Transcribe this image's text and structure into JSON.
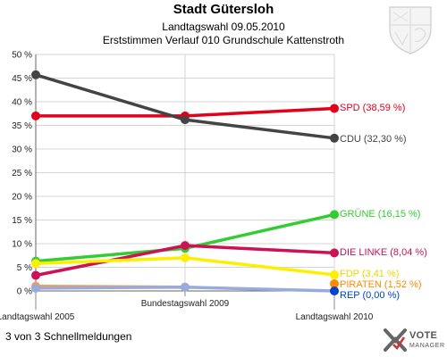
{
  "header": {
    "title": "Stadt Gütersloh",
    "subtitle": "Landtagswahl 09.05.2010",
    "subtitle2": "Erststimmen Verlauf 010 Grundschule Kattenstroth"
  },
  "footer": {
    "status": "3 von 3 Schnellmeldungen",
    "logo_line1": "VOTE",
    "logo_line2": "MANAGER"
  },
  "chart_data": {
    "type": "line",
    "x": [
      "Landtagswahl 2005",
      "Bundestagswahl 2009",
      "Landtagswahl 2010"
    ],
    "ylim": [
      0,
      50
    ],
    "yticks": [
      "0 %",
      "5 %",
      "10 %",
      "15 %",
      "20 %",
      "25 %",
      "30 %",
      "35 %",
      "40 %",
      "45 %",
      "50 %"
    ],
    "grid": true,
    "series": [
      {
        "name": "SPD",
        "label": "SPD (38,59 %)",
        "color": "#e2001a",
        "values": [
          37.0,
          37.0,
          38.59
        ]
      },
      {
        "name": "CDU",
        "label": "CDU (32,30 %)",
        "color": "#444444",
        "values": [
          45.7,
          36.2,
          32.3
        ]
      },
      {
        "name": "GRÜNE",
        "label": "GRÜNE (16,15 %)",
        "color": "#33cc33",
        "values": [
          6.3,
          9.0,
          16.15
        ]
      },
      {
        "name": "DIE LINKE",
        "label": "DIE LINKE (8,04 %)",
        "color": "#cc1155",
        "values": [
          3.3,
          9.6,
          8.04
        ]
      },
      {
        "name": "FDP",
        "label": "FDP (3,41 %)",
        "color": "#ffee00",
        "values": [
          5.8,
          7.0,
          3.41
        ]
      },
      {
        "name": "PIRATEN",
        "label": "PIRATEN (1,52 %)",
        "color": "#ff8800",
        "values": [
          null,
          null,
          1.52
        ]
      },
      {
        "name": "REP",
        "label": "REP (0,00 %)",
        "color": "#0044cc",
        "values": [
          null,
          null,
          0.0
        ]
      },
      {
        "name": "",
        "label": "",
        "color": "#ff9944",
        "values": [
          1.0,
          0.8,
          null
        ]
      },
      {
        "name": "",
        "label": "",
        "color": "#99aadd",
        "values": [
          0.6,
          0.8,
          0.0
        ]
      }
    ]
  }
}
